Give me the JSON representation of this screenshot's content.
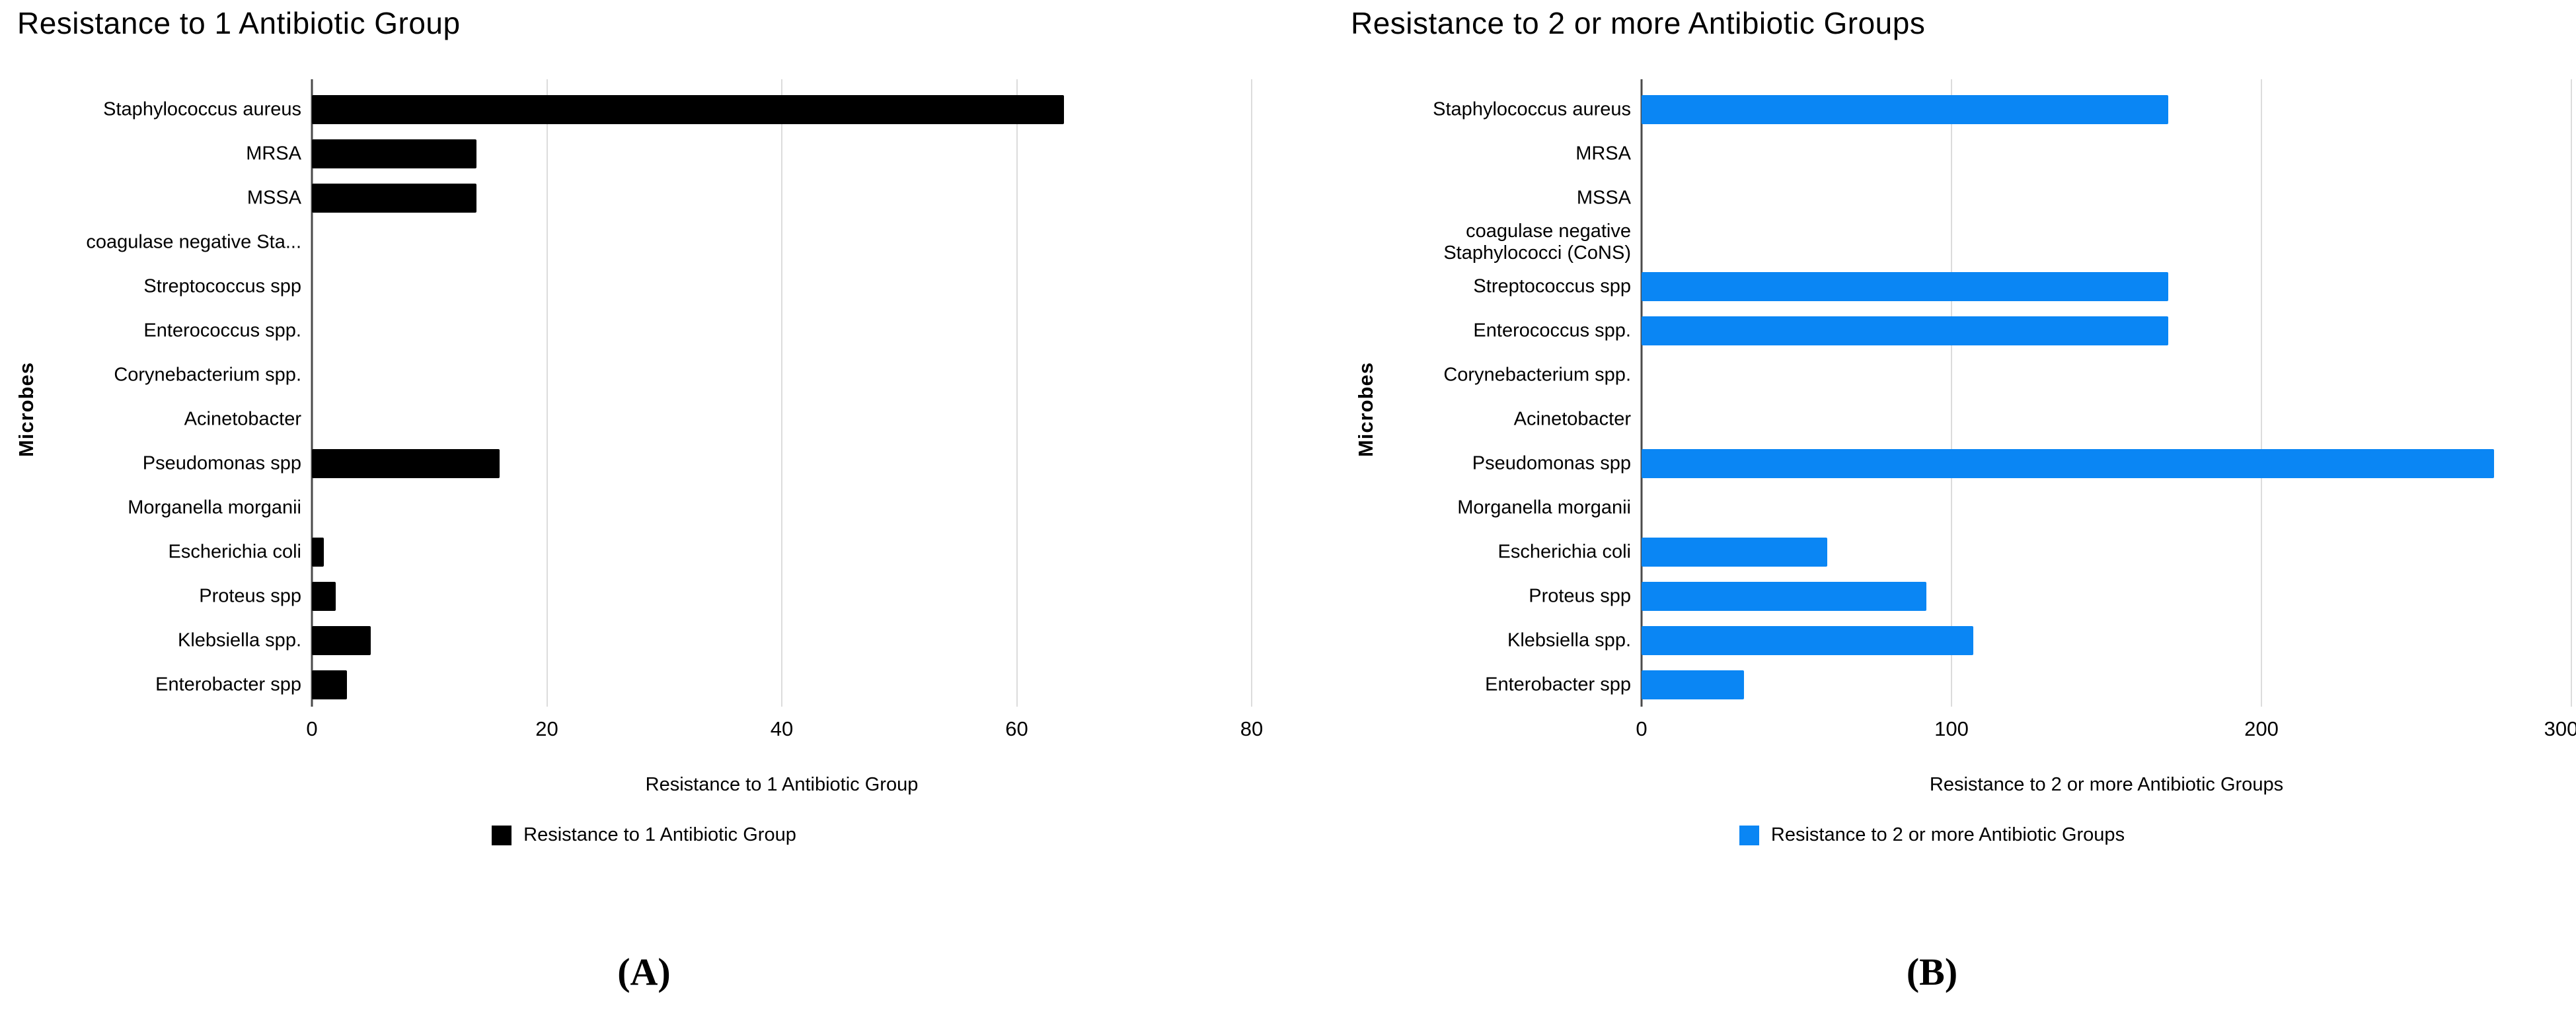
{
  "chart_data": [
    {
      "type": "bar",
      "orientation": "horizontal",
      "title": "Resistance to 1 Antibiotic Group",
      "ylabel": "Microbes",
      "xlabel": "Resistance to 1 Antibiotic Group",
      "legend_label": "Resistance to 1 Antibiotic Group",
      "legend_position": "bottom",
      "caption": "(A)",
      "bar_color": "#000000",
      "grid": true,
      "xlim": [
        0,
        80
      ],
      "xticks": [
        0,
        20,
        40,
        60,
        80
      ],
      "categories": [
        "Staphylococcus aureus",
        "MRSA",
        "MSSA",
        "coagulase negative Sta...",
        "Streptococcus spp",
        "Enterococcus spp.",
        "Corynebacterium spp.",
        "Acinetobacter",
        "Pseudomonas spp",
        "Morganella morganii",
        "Escherichia coli",
        "Proteus spp",
        "Klebsiella spp.",
        "Enterobacter spp"
      ],
      "values": [
        64,
        14,
        14,
        0,
        0,
        0,
        0,
        0,
        16,
        0,
        1,
        2,
        5,
        3
      ]
    },
    {
      "type": "bar",
      "orientation": "horizontal",
      "title": "Resistance to 2 or more Antibiotic Groups",
      "ylabel": "Microbes",
      "xlabel": "Resistance to 2 or more Antibiotic Groups",
      "legend_label": "Resistance to 2 or more Antibiotic Groups",
      "legend_position": "bottom",
      "caption": "(B)",
      "bar_color": "#0a86f4",
      "grid": true,
      "xlim": [
        0,
        300
      ],
      "xticks": [
        0,
        100,
        200,
        300
      ],
      "categories": [
        "Staphylococcus aureus",
        "MRSA",
        "MSSA",
        "coagulase negative\nStaphylococci (CoNS)",
        "Streptococcus spp",
        "Enterococcus spp.",
        "Corynebacterium spp.",
        "Acinetobacter",
        "Pseudomonas spp",
        "Morganella morganii",
        "Escherichia coli",
        "Proteus spp",
        "Klebsiella spp.",
        "Enterobacter spp"
      ],
      "values": [
        170,
        0,
        0,
        0,
        170,
        170,
        0,
        0,
        275,
        0,
        60,
        92,
        107,
        33
      ]
    }
  ]
}
